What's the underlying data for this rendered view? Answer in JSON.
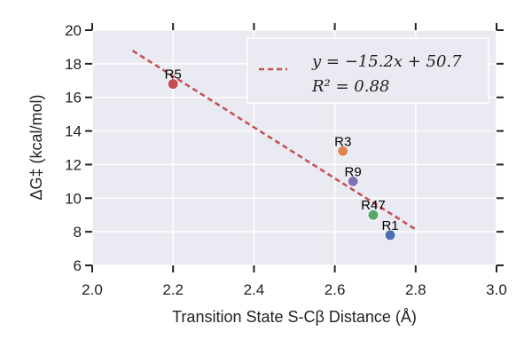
{
  "chart_data": {
    "type": "scatter",
    "xlabel": "Transition State S-Cβ Distance (Å)",
    "ylabel": "ΔG‡ (kcal/mol)",
    "xlim": [
      2.0,
      3.0
    ],
    "ylim": [
      6,
      20
    ],
    "x_ticks": [
      2.0,
      2.2,
      2.4,
      2.6,
      2.8,
      3.0
    ],
    "y_ticks": [
      6,
      8,
      10,
      12,
      14,
      16,
      18,
      20
    ],
    "x_tick_labels": [
      "2.0",
      "2.2",
      "2.4",
      "2.6",
      "2.8",
      "3.0"
    ],
    "y_tick_labels": [
      "6",
      "8",
      "10",
      "12",
      "14",
      "16",
      "18",
      "20"
    ],
    "grid": true,
    "points": [
      {
        "label": "R5",
        "x": 2.2,
        "y": 16.8,
        "color": "#c44e52"
      },
      {
        "label": "R3",
        "x": 2.62,
        "y": 12.8,
        "color": "#dd8452"
      },
      {
        "label": "R9",
        "x": 2.645,
        "y": 11.0,
        "color": "#8172b2"
      },
      {
        "label": "R47",
        "x": 2.695,
        "y": 9.0,
        "color": "#55a868"
      },
      {
        "label": "R1",
        "x": 2.737,
        "y": 7.8,
        "color": "#4c72b0"
      }
    ],
    "fit_line": {
      "slope": -15.2,
      "intercept": 50.7,
      "x_start": 2.1,
      "x_end": 2.8,
      "color": "#c44e52",
      "style": "dashed"
    },
    "legend": {
      "placement": "top-right",
      "line1": "y = −15.2x + 50.7",
      "line2": "R² = 0.88"
    }
  }
}
